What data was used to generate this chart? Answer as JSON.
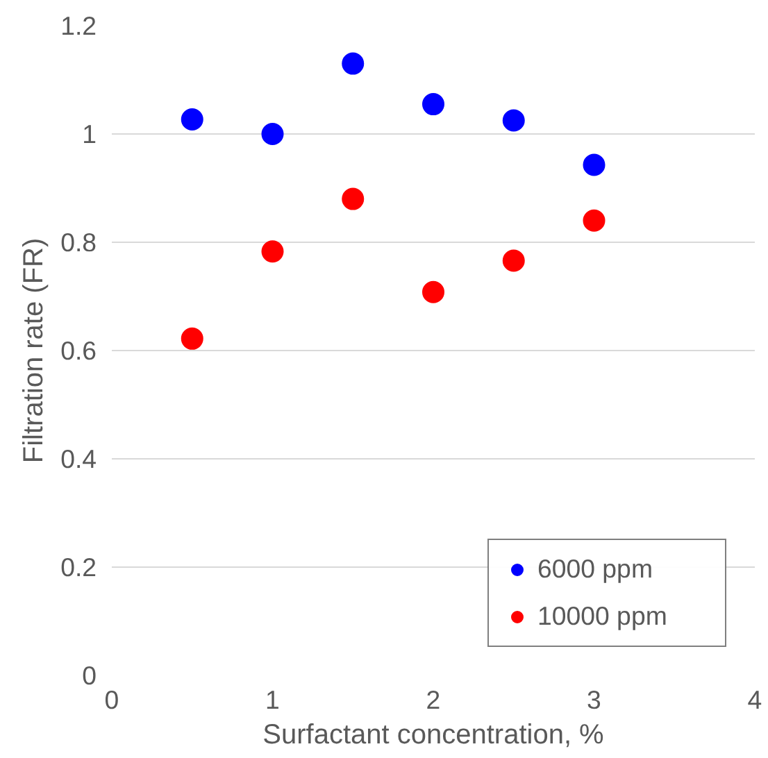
{
  "chart_data": {
    "type": "scatter",
    "xlabel": "Surfactant concentration, %",
    "ylabel": "Filtration rate (FR)",
    "x": [
      0.5,
      1,
      1.5,
      2,
      2.5,
      3
    ],
    "series": [
      {
        "name": "6000 ppm",
        "color": "#0000ff",
        "values": [
          1.027,
          1.0,
          1.13,
          1.055,
          1.025,
          0.943
        ]
      },
      {
        "name": "10000 ppm",
        "color": "#ff0000",
        "values": [
          0.622,
          0.783,
          0.88,
          0.708,
          0.766,
          0.84
        ]
      }
    ],
    "xlim": [
      0,
      4
    ],
    "xticks": [
      0,
      1,
      2,
      3,
      4
    ],
    "ylim": [
      0,
      1.2
    ],
    "yticks": [
      0,
      0.2,
      0.4,
      0.6,
      0.8,
      1,
      1.2
    ],
    "grid": "y",
    "legend": "bottom right",
    "marker": "circle"
  }
}
